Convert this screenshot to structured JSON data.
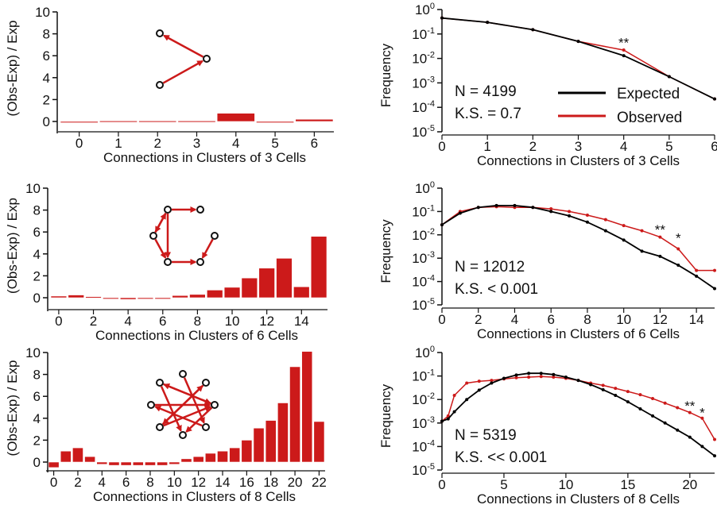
{
  "colors": {
    "observed": "#cc1a1a",
    "expected": "#000000",
    "axis": "#111111"
  },
  "left_ylabel": "(Obs-Exp) / Exp",
  "right_ylabel": "Frequency",
  "legend": {
    "expected": "Expected",
    "observed": "Observed"
  },
  "chart_data": [
    {
      "id": "bar-3",
      "type": "bar",
      "xlabel": "Connections in Clusters of 3 Cells",
      "ylabel": "(Obs-Exp) / Exp",
      "categories": [
        0,
        1,
        2,
        3,
        4,
        5,
        6
      ],
      "values": [
        -0.1,
        0.05,
        0.05,
        0.05,
        0.75,
        -0.05,
        0.2
      ],
      "ylim": [
        -1,
        10
      ],
      "yticks": [
        0,
        2,
        4,
        6,
        8,
        10
      ],
      "xticklabels": [
        "0",
        "1",
        "2",
        "3",
        "4",
        "5",
        "6"
      ]
    },
    {
      "id": "bar-6",
      "type": "bar",
      "xlabel": "Connections in Clusters of 6 Cells",
      "ylabel": "(Obs-Exp) / Exp",
      "categories": [
        0,
        1,
        2,
        3,
        4,
        5,
        6,
        7,
        8,
        9,
        10,
        11,
        12,
        13,
        14,
        15
      ],
      "values": [
        0.15,
        0.25,
        0.1,
        -0.1,
        -0.15,
        -0.1,
        0.0,
        0.2,
        0.3,
        0.7,
        0.95,
        1.8,
        2.7,
        3.6,
        1.0,
        5.6
      ],
      "ylim": [
        -1,
        10
      ],
      "yticks": [
        0,
        2,
        4,
        6,
        8,
        10
      ],
      "xticklabels": [
        "0",
        "2",
        "4",
        "6",
        "8",
        "10",
        "12",
        "14"
      ]
    },
    {
      "id": "bar-8",
      "type": "bar",
      "xlabel": "Connections in Clusters of 8 Cells",
      "ylabel": "(Obs-Exp) / Exp",
      "categories": [
        0,
        1,
        2,
        3,
        4,
        5,
        6,
        7,
        8,
        9,
        10,
        11,
        12,
        13,
        14,
        15,
        16,
        17,
        18,
        19,
        20,
        21,
        22
      ],
      "values": [
        -0.5,
        1.0,
        1.3,
        0.5,
        -0.2,
        -0.3,
        -0.3,
        -0.3,
        -0.3,
        -0.3,
        -0.2,
        0.3,
        0.5,
        0.8,
        1.0,
        1.3,
        2.0,
        3.1,
        3.8,
        5.4,
        8.7,
        10.1,
        3.7
      ],
      "ylim": [
        -1,
        10
      ],
      "yticks": [
        0,
        2,
        4,
        6,
        8,
        10
      ],
      "xticklabels": [
        "0",
        "2",
        "4",
        "6",
        "8",
        "10",
        "12",
        "14",
        "16",
        "18",
        "20",
        "22"
      ]
    },
    {
      "id": "line-3",
      "type": "line",
      "yscale": "log",
      "xlabel": "Connections in Clusters of 3 Cells",
      "ylabel": "Frequency",
      "xlim": [
        0,
        6
      ],
      "ylim": [
        1e-05,
        1
      ],
      "xticks": [
        0,
        1,
        2,
        3,
        4,
        5,
        6
      ],
      "yticks": [
        {
          "v": 1,
          "exp": "0"
        },
        {
          "v": 0.1,
          "exp": "-1"
        },
        {
          "v": 0.01,
          "exp": "-2"
        },
        {
          "v": 0.001,
          "exp": "-3"
        },
        {
          "v": 0.0001,
          "exp": "-4"
        },
        {
          "v": 1e-05,
          "exp": "-5"
        }
      ],
      "series": [
        {
          "name": "Observed",
          "x": [
            0,
            1,
            2,
            3,
            4,
            5,
            6
          ],
          "y": [
            0.45,
            0.3,
            0.15,
            0.05,
            0.022,
            0.0018,
            0.00022
          ]
        },
        {
          "name": "Expected",
          "x": [
            0,
            1,
            2,
            3,
            4,
            5,
            6
          ],
          "y": [
            0.45,
            0.3,
            0.15,
            0.05,
            0.013,
            0.0018,
            0.00022
          ]
        }
      ],
      "stats": [
        "N = 4199",
        "K.S. = 0.7"
      ],
      "annotations": [
        {
          "text": "**",
          "x": 4,
          "y": 0.045
        }
      ],
      "legend_position": "center-right"
    },
    {
      "id": "line-6",
      "type": "line",
      "yscale": "log",
      "xlabel": "Connections in Clusters of 6 Cells",
      "ylabel": "Frequency",
      "xlim": [
        0,
        15
      ],
      "ylim": [
        1e-05,
        1
      ],
      "xticks": [
        0,
        2,
        4,
        6,
        8,
        10,
        12,
        14
      ],
      "yticks": [
        {
          "v": 1,
          "exp": "0"
        },
        {
          "v": 0.1,
          "exp": "-1"
        },
        {
          "v": 0.01,
          "exp": "-2"
        },
        {
          "v": 0.001,
          "exp": "-3"
        },
        {
          "v": 0.0001,
          "exp": "-4"
        },
        {
          "v": 1e-05,
          "exp": "-5"
        }
      ],
      "series": [
        {
          "name": "Observed",
          "x": [
            0,
            1,
            2,
            3,
            4,
            5,
            6,
            7,
            8,
            9,
            10,
            11,
            12,
            13,
            14,
            15
          ],
          "y": [
            0.027,
            0.1,
            0.15,
            0.16,
            0.15,
            0.15,
            0.13,
            0.1,
            0.07,
            0.045,
            0.025,
            0.015,
            0.008,
            0.0025,
            0.0003,
            0.0003
          ]
        },
        {
          "name": "Expected",
          "x": [
            0,
            1,
            2,
            3,
            4,
            5,
            6,
            7,
            8,
            9,
            10,
            11,
            12,
            13,
            14,
            15
          ],
          "y": [
            0.027,
            0.085,
            0.15,
            0.18,
            0.18,
            0.15,
            0.1,
            0.065,
            0.035,
            0.015,
            0.006,
            0.002,
            0.0012,
            0.0005,
            0.00017,
            5e-05
          ]
        }
      ],
      "stats": [
        "N = 12012",
        "K.S. < 0.001"
      ],
      "annotations": [
        {
          "text": "**",
          "x": 12,
          "y": 0.017
        },
        {
          "text": "*",
          "x": 13,
          "y": 0.0075
        }
      ]
    },
    {
      "id": "line-8",
      "type": "line",
      "yscale": "log",
      "xlabel": "Connections in Clusters of 8 Cells",
      "ylabel": "Frequency",
      "xlim": [
        0,
        22
      ],
      "ylim": [
        1e-05,
        1
      ],
      "xticks": [
        0,
        5,
        10,
        15,
        20
      ],
      "yticks": [
        {
          "v": 1,
          "exp": "0"
        },
        {
          "v": 0.1,
          "exp": "-1"
        },
        {
          "v": 0.01,
          "exp": "-2"
        },
        {
          "v": 0.001,
          "exp": "-3"
        },
        {
          "v": 0.0001,
          "exp": "-4"
        },
        {
          "v": 1e-05,
          "exp": "-5"
        }
      ],
      "series": [
        {
          "name": "Observed",
          "x": [
            0,
            0.5,
            1,
            2,
            3,
            4,
            5,
            6,
            7,
            8,
            9,
            10,
            11,
            12,
            13,
            14,
            15,
            16,
            17,
            18,
            19,
            20,
            21,
            22
          ],
          "y": [
            0.0012,
            0.002,
            0.015,
            0.05,
            0.06,
            0.065,
            0.075,
            0.085,
            0.09,
            0.095,
            0.09,
            0.08,
            0.065,
            0.05,
            0.04,
            0.03,
            0.022,
            0.016,
            0.011,
            0.007,
            0.0045,
            0.0028,
            0.0016,
            0.0002
          ]
        },
        {
          "name": "Expected",
          "x": [
            0,
            0.5,
            1,
            2,
            3,
            4,
            5,
            6,
            7,
            8,
            9,
            10,
            11,
            12,
            13,
            14,
            15,
            16,
            17,
            18,
            19,
            20,
            21,
            22
          ],
          "y": [
            0.0012,
            0.0015,
            0.003,
            0.01,
            0.025,
            0.05,
            0.08,
            0.11,
            0.13,
            0.13,
            0.115,
            0.09,
            0.065,
            0.043,
            0.026,
            0.015,
            0.008,
            0.004,
            0.002,
            0.001,
            0.0005,
            0.00025,
            0.0001,
            4e-05
          ]
        }
      ],
      "stats": [
        "N = 5319",
        "K.S. << 0.001"
      ],
      "annotations": [
        {
          "text": "**",
          "x": 20,
          "y": 0.0055
        },
        {
          "text": "*",
          "x": 21,
          "y": 0.0028
        }
      ]
    }
  ]
}
